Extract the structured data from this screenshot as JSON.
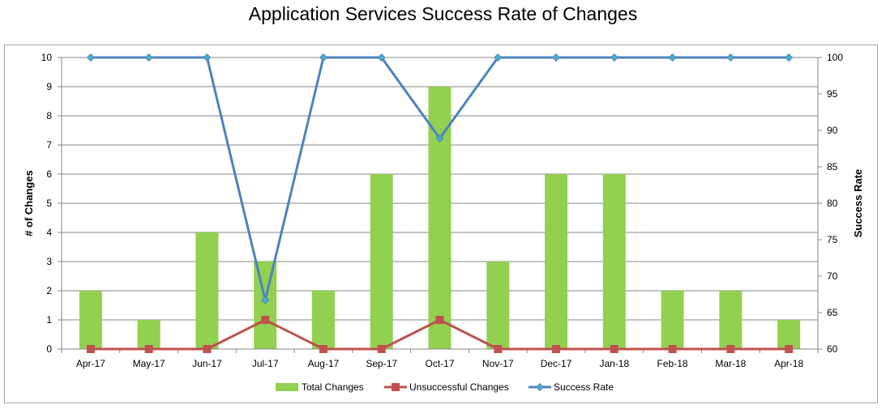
{
  "chart_data": {
    "type": "bar+line",
    "title": "Application Services Success Rate of Changes",
    "categories": [
      "Apr-17",
      "May-17",
      "Jun-17",
      "Jul-17",
      "Aug-17",
      "Sep-17",
      "Oct-17",
      "Nov-17",
      "Dec-17",
      "Jan-18",
      "Feb-18",
      "Mar-18",
      "Apr-18"
    ],
    "series": [
      {
        "name": "Total Changes",
        "type": "bar",
        "axis": "left",
        "color": "#92d050",
        "values": [
          2,
          1,
          4,
          3,
          2,
          6,
          9,
          3,
          6,
          6,
          2,
          2,
          1
        ]
      },
      {
        "name": "Unsuccessful Changes",
        "type": "line",
        "axis": "left",
        "color": "#c0504d",
        "marker": "square",
        "values": [
          0,
          0,
          0,
          1,
          0,
          0,
          1,
          0,
          0,
          0,
          0,
          0,
          0
        ]
      },
      {
        "name": "Success Rate",
        "type": "line",
        "axis": "right",
        "color": "#4f81bd",
        "marker": "diamond",
        "values": [
          100,
          100,
          100,
          66.7,
          100,
          100,
          88.9,
          100,
          100,
          100,
          100,
          100,
          100
        ]
      }
    ],
    "ylabel": "# of Changes",
    "ylim": [
      0,
      10
    ],
    "yticks": [
      0,
      1,
      2,
      3,
      4,
      5,
      6,
      7,
      8,
      9,
      10
    ],
    "y2label": "Success Rate",
    "y2lim": [
      60,
      100
    ],
    "y2ticks": [
      60,
      65,
      70,
      75,
      80,
      85,
      90,
      95,
      100
    ],
    "grid": true,
    "legend": "bottom",
    "marker_colors": {
      "success_rate_marker": "#4bacc6"
    }
  }
}
